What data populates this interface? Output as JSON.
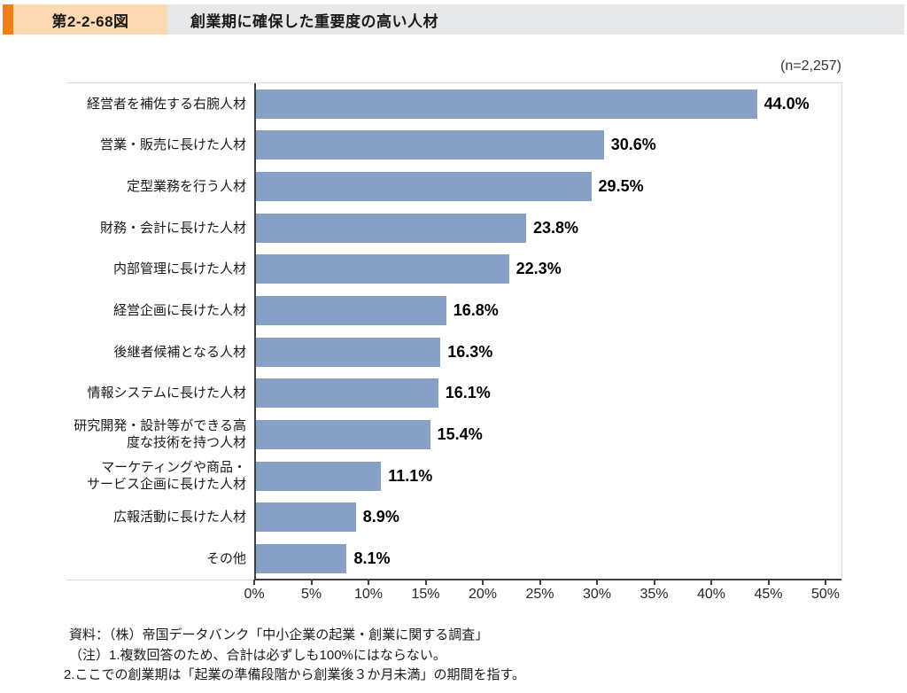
{
  "header": {
    "figure_no": "第2-2-68図",
    "title": "創業期に確保した重要度の高い人材"
  },
  "chart_data": {
    "type": "bar",
    "orientation": "horizontal",
    "title": "創業期に確保した重要度の高い人材",
    "n_label": "(n=2,257)",
    "categories": [
      "経営者を補佐する右腕人材",
      "営業・販売に長けた人材",
      "定型業務を行う人材",
      "財務・会計に長けた人材",
      "内部管理に長けた人材",
      "経営企画に長けた人材",
      "後継者候補となる人材",
      "情報システムに長けた人材",
      "研究開発・設計等ができる高\n度な技術を持つ人材",
      "マーケティングや商品・\nサービス企画に長けた人材",
      "広報活動に長けた人材",
      "その他"
    ],
    "values": [
      44.0,
      30.6,
      29.5,
      23.8,
      22.3,
      16.8,
      16.3,
      16.1,
      15.4,
      11.1,
      8.9,
      8.1
    ],
    "value_suffix": "%",
    "x_ticks": [
      0,
      5,
      10,
      15,
      20,
      25,
      30,
      35,
      40,
      45,
      50
    ],
    "x_tick_suffix": "%",
    "xlim": [
      0,
      50
    ],
    "bar_color": "#86a0c6",
    "grid": false,
    "legend": "none"
  },
  "footer": {
    "source": "資料：（株）帝国データバンク「中小企業の起業・創業に関する調査」",
    "note1": "（注）1.複数回答のため、合計は必ずしも100%にはならない。",
    "note2": "2.ここでの創業期は「起業の準備段階から創業後３か月未満」の期間を指す。"
  }
}
